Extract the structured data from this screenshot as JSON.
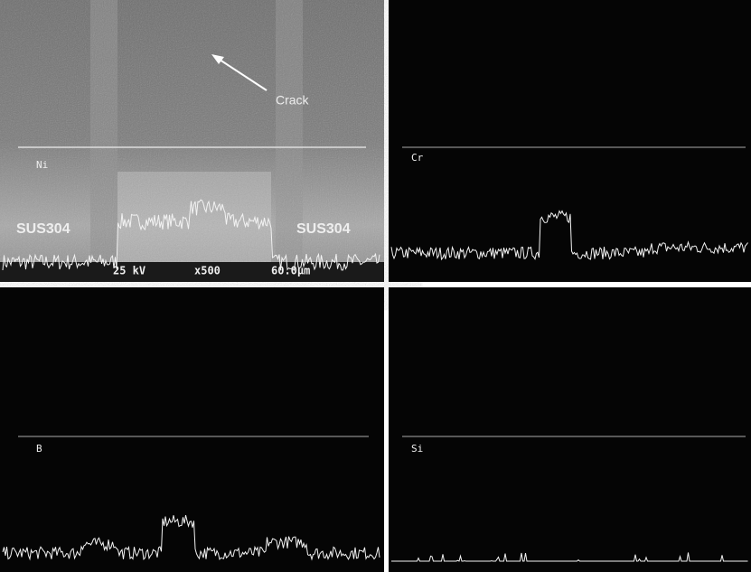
{
  "sem": {
    "crack_label": "Crack",
    "trace_label": "Ni",
    "left_region": "SUS304",
    "right_region": "SUS304",
    "scale_bar": {
      "voltage": "25 kV",
      "magnification": "x500",
      "length": "60.0µm"
    }
  },
  "profiles": [
    {
      "element": "Cr"
    },
    {
      "element": "B"
    },
    {
      "element": "Si"
    }
  ]
}
